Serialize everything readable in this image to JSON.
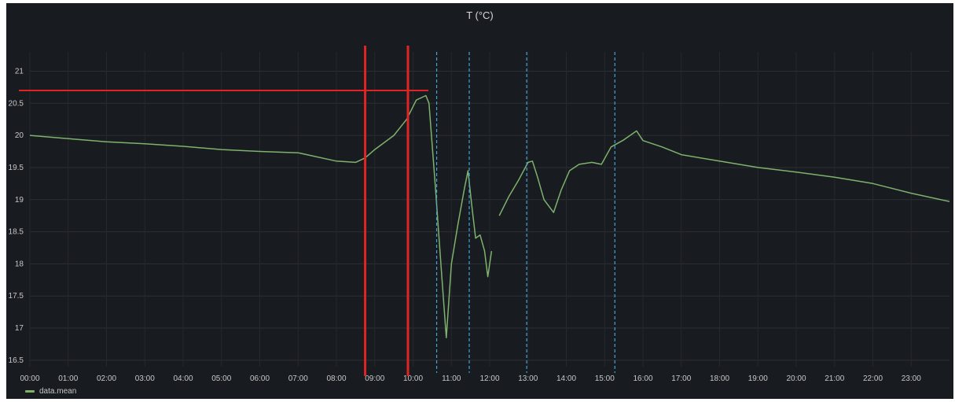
{
  "chart_data": {
    "type": "line",
    "title": "T (°C)",
    "xlabel": "",
    "ylabel": "",
    "x_ticks": [
      "00:00",
      "01:00",
      "02:00",
      "03:00",
      "04:00",
      "05:00",
      "06:00",
      "07:00",
      "08:00",
      "09:00",
      "10:00",
      "11:00",
      "12:00",
      "13:00",
      "14:00",
      "15:00",
      "16:00",
      "17:00",
      "18:00",
      "19:00",
      "20:00",
      "21:00",
      "22:00",
      "23:00"
    ],
    "y_ticks": [
      "16.5",
      "17",
      "17.5",
      "18",
      "18.5",
      "19",
      "19.5",
      "20",
      "20.5",
      "21"
    ],
    "xlim": [
      "00:00",
      "24:00"
    ],
    "ylim": [
      16.4,
      21.3
    ],
    "grid": true,
    "legend_position": "bottom-left",
    "series": [
      {
        "name": "data.mean",
        "color": "#7eb26d",
        "segments": [
          [
            [
              "00:00",
              20.0
            ],
            [
              "01:00",
              19.95
            ],
            [
              "02:00",
              19.9
            ],
            [
              "03:00",
              19.87
            ],
            [
              "04:00",
              19.83
            ],
            [
              "05:00",
              19.78
            ],
            [
              "06:00",
              19.75
            ],
            [
              "07:00",
              19.73
            ],
            [
              "08:00",
              19.6
            ],
            [
              "08:30",
              19.58
            ],
            [
              "08:45",
              19.65
            ],
            [
              "09:00",
              19.78
            ],
            [
              "09:30",
              20.0
            ],
            [
              "09:50",
              20.25
            ],
            [
              "10:05",
              20.55
            ],
            [
              "10:20",
              20.62
            ],
            [
              "10:25",
              20.5
            ],
            [
              "10:35",
              19.2
            ],
            [
              "10:45",
              17.8
            ],
            [
              "10:52",
              16.85
            ],
            [
              "11:00",
              18.0
            ],
            [
              "11:10",
              18.6
            ],
            [
              "11:20",
              19.15
            ],
            [
              "11:26",
              19.45
            ],
            [
              "11:32",
              18.9
            ],
            [
              "11:38",
              18.4
            ],
            [
              "11:45",
              18.45
            ],
            [
              "11:52",
              18.2
            ],
            [
              "11:57",
              17.8
            ],
            [
              "12:03",
              18.2
            ]
          ],
          [
            [
              "12:15",
              18.75
            ],
            [
              "12:30",
              19.05
            ],
            [
              "12:45",
              19.3
            ],
            [
              "13:00",
              19.58
            ],
            [
              "13:07",
              19.6
            ],
            [
              "13:15",
              19.35
            ],
            [
              "13:25",
              19.0
            ],
            [
              "13:40",
              18.8
            ],
            [
              "13:52",
              19.15
            ],
            [
              "14:05",
              19.45
            ],
            [
              "14:20",
              19.55
            ],
            [
              "14:40",
              19.58
            ],
            [
              "14:55",
              19.55
            ],
            [
              "15:10",
              19.82
            ],
            [
              "15:30",
              19.93
            ],
            [
              "15:50",
              20.07
            ],
            [
              "16:00",
              19.92
            ],
            [
              "16:30",
              19.82
            ],
            [
              "17:00",
              19.7
            ],
            [
              "18:00",
              19.6
            ],
            [
              "19:00",
              19.5
            ],
            [
              "20:00",
              19.43
            ],
            [
              "21:00",
              19.35
            ],
            [
              "22:00",
              19.25
            ],
            [
              "23:00",
              19.1
            ],
            [
              "24:00",
              18.97
            ]
          ]
        ]
      }
    ],
    "annotations": {
      "red_vertical": [
        "08:45",
        "09:52"
      ],
      "blue_dashed_vertical": [
        "10:37",
        "11:28",
        "12:58",
        "15:16"
      ],
      "red_horizontal": {
        "y": 20.7,
        "from": "00:00",
        "to": "10:24"
      }
    }
  }
}
